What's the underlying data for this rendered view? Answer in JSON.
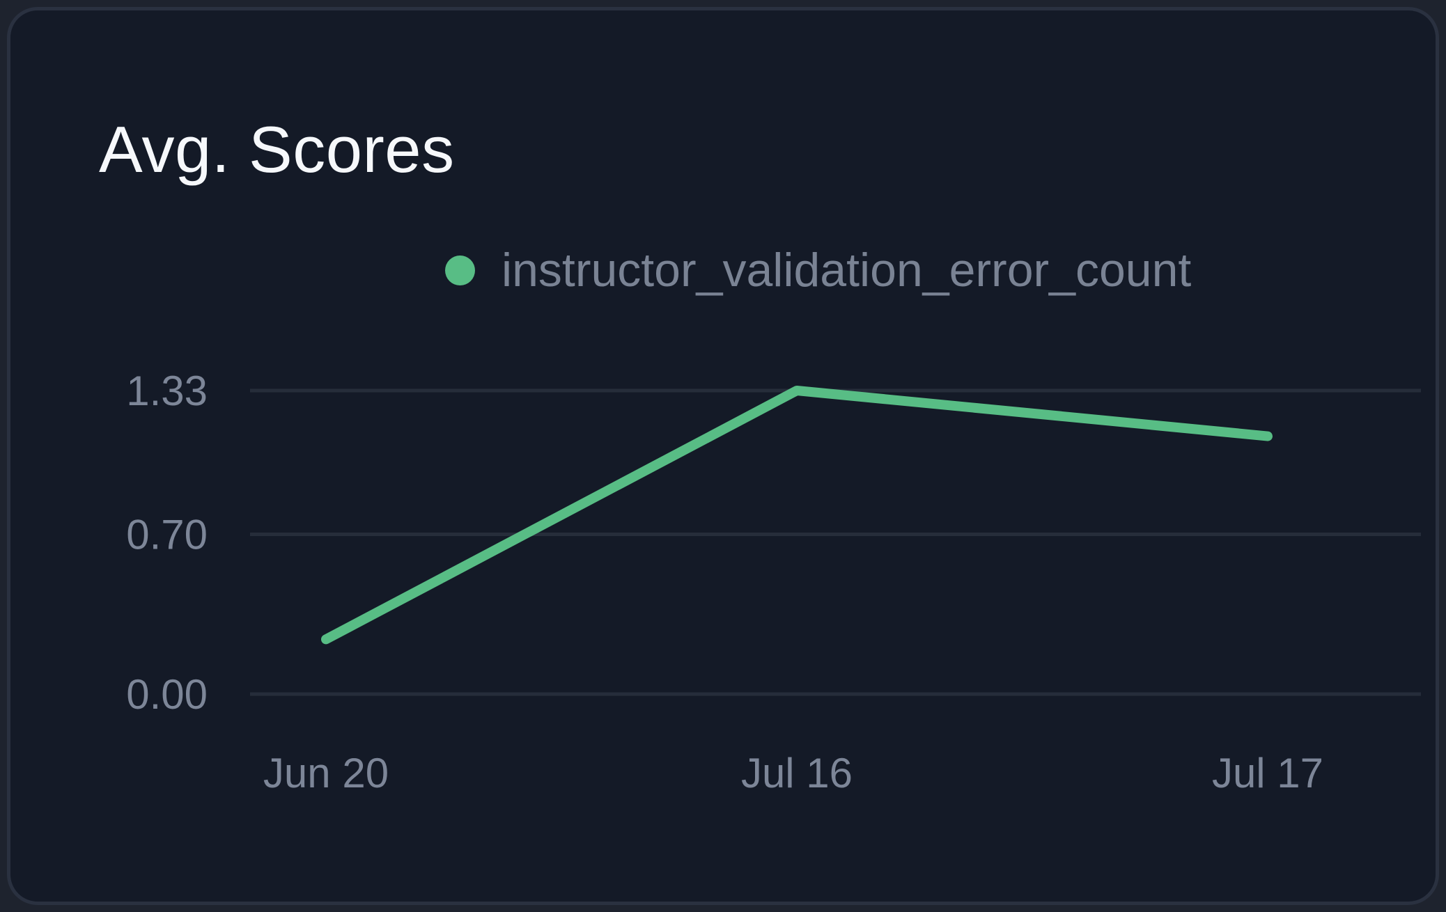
{
  "card": {
    "title": "Avg. Scores"
  },
  "legend": {
    "entries": [
      {
        "label": "instructor_validation_error_count",
        "marker_color": "#58bd85"
      }
    ]
  },
  "chart_data": {
    "type": "line",
    "title": "Avg. Scores",
    "categories": [
      "Jun 20",
      "Jul 16",
      "Jul 17"
    ],
    "series": [
      {
        "name": "instructor_validation_error_count",
        "values": [
          0.24,
          1.33,
          1.13
        ],
        "color": "#58bd85"
      }
    ],
    "xlabel": "",
    "ylabel": "",
    "ylim": [
      0,
      1.33
    ],
    "yticks": [
      {
        "value": 0.0,
        "label": "0.00"
      },
      {
        "value": 0.7,
        "label": "0.70"
      },
      {
        "value": 1.33,
        "label": "1.33"
      }
    ],
    "grid": "horizontal",
    "legend_position": "top-center"
  },
  "colors": {
    "page_bg": "#1e232e",
    "card_bg": "#141a27",
    "card_border": "#2a3140",
    "gridline": "#262d3a",
    "title_text": "#f6f8fb",
    "axis_text": "#7d8698",
    "legend_text": "#7a8394",
    "accent": "#58bd85"
  }
}
